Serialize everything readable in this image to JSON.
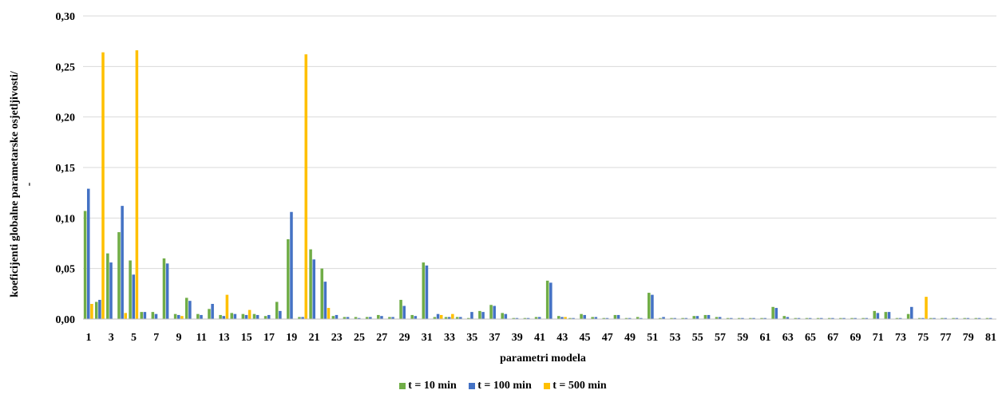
{
  "chart_data": {
    "type": "bar",
    "title": "",
    "xlabel": "parametri modela",
    "ylabel": "koeficijenti globalne parametarske osjetljivosti/ -",
    "ylabel_lines": [
      "koeficijenti globalne parametarske osjetljivosti/",
      "-"
    ],
    "ylim": [
      0,
      0.3
    ],
    "yticks": [
      "0,00",
      "0,05",
      "0,10",
      "0,15",
      "0,20",
      "0,25",
      "0,30"
    ],
    "yticks_values": [
      0,
      0.05,
      0.1,
      0.15,
      0.2,
      0.25,
      0.3
    ],
    "grid": true,
    "legend_position": "bottom",
    "categories": [
      "1",
      "2",
      "3",
      "4",
      "5",
      "6",
      "7",
      "8",
      "9",
      "10",
      "11",
      "12",
      "13",
      "14",
      "15",
      "16",
      "17",
      "18",
      "19",
      "20",
      "21",
      "22",
      "23",
      "24",
      "25",
      "26",
      "27",
      "28",
      "29",
      "30",
      "31",
      "32",
      "33",
      "34",
      "35",
      "36",
      "37",
      "38",
      "39",
      "40",
      "41",
      "42",
      "43",
      "44",
      "45",
      "46",
      "47",
      "48",
      "49",
      "50",
      "51",
      "52",
      "53",
      "54",
      "55",
      "56",
      "57",
      "58",
      "59",
      "60",
      "61",
      "62",
      "63",
      "64",
      "65",
      "66",
      "67",
      "68",
      "69",
      "70",
      "71",
      "72",
      "73",
      "74",
      "75",
      "76",
      "77",
      "78",
      "79",
      "80",
      "81"
    ],
    "xtick_labels": [
      "1",
      "3",
      "5",
      "7",
      "9",
      "11",
      "13",
      "15",
      "17",
      "19",
      "21",
      "23",
      "25",
      "27",
      "29",
      "31",
      "33",
      "35",
      "37",
      "39",
      "41",
      "43",
      "45",
      "47",
      "49",
      "51",
      "53",
      "55",
      "57",
      "59",
      "61",
      "63",
      "65",
      "67",
      "69",
      "71",
      "73",
      "75",
      "77",
      "79",
      "81"
    ],
    "series": [
      {
        "name": "t = 10 min",
        "color": "#70ad47",
        "values": [
          0.107,
          0.017,
          0.065,
          0.086,
          0.058,
          0.007,
          0.007,
          0.06,
          0.005,
          0.021,
          0.005,
          0.01,
          0.004,
          0.006,
          0.005,
          0.005,
          0.003,
          0.017,
          0.079,
          0.002,
          0.069,
          0.05,
          0.003,
          0.002,
          0.002,
          0.002,
          0.004,
          0.002,
          0.019,
          0.004,
          0.056,
          0.002,
          0.002,
          0.002,
          0.001,
          0.008,
          0.014,
          0.006,
          0.001,
          0.001,
          0.002,
          0.038,
          0.003,
          0.001,
          0.005,
          0.002,
          0.001,
          0.004,
          0.001,
          0.002,
          0.026,
          0.001,
          0.001,
          0.001,
          0.003,
          0.004,
          0.002,
          0.001,
          0.001,
          0.001,
          0.001,
          0.012,
          0.003,
          0.001,
          0.001,
          0.001,
          0.001,
          0.001,
          0.001,
          0.001,
          0.008,
          0.007,
          0.001,
          0.005,
          0.001,
          0.001,
          0.001,
          0.001,
          0.001,
          0.001,
          0.001
        ]
      },
      {
        "name": "t = 100 min",
        "color": "#4472c4",
        "values": [
          0.129,
          0.019,
          0.056,
          0.112,
          0.044,
          0.007,
          0.005,
          0.055,
          0.004,
          0.018,
          0.004,
          0.015,
          0.003,
          0.005,
          0.004,
          0.004,
          0.004,
          0.008,
          0.106,
          0.002,
          0.059,
          0.037,
          0.004,
          0.002,
          0.001,
          0.002,
          0.003,
          0.002,
          0.013,
          0.003,
          0.053,
          0.005,
          0.002,
          0.002,
          0.007,
          0.007,
          0.013,
          0.005,
          0.001,
          0.001,
          0.002,
          0.036,
          0.002,
          0.001,
          0.004,
          0.002,
          0.001,
          0.004,
          0.001,
          0.001,
          0.024,
          0.002,
          0.001,
          0.001,
          0.003,
          0.004,
          0.002,
          0.001,
          0.001,
          0.001,
          0.001,
          0.011,
          0.002,
          0.001,
          0.001,
          0.001,
          0.001,
          0.001,
          0.001,
          0.001,
          0.006,
          0.007,
          0.001,
          0.012,
          0.001,
          0.001,
          0.001,
          0.001,
          0.001,
          0.001,
          0.001
        ]
      },
      {
        "name": "t = 500 min",
        "color": "#ffc000",
        "values": [
          0.015,
          0.264,
          0.0,
          0.006,
          0.266,
          0.0,
          0.0,
          0.0,
          0.003,
          0.0,
          0.0,
          0.0,
          0.024,
          0.0,
          0.009,
          0.0,
          0.0,
          0.0,
          0.0,
          0.262,
          0.0,
          0.011,
          0.0,
          0.0,
          0.0,
          0.0,
          0.0,
          0.0,
          0.0,
          0.0,
          0.0,
          0.004,
          0.005,
          0.0,
          0.0,
          0.0,
          0.0,
          0.0,
          0.0,
          0.0,
          0.0,
          0.0,
          0.002,
          0.0,
          0.0,
          0.0,
          0.0,
          0.0,
          0.0,
          0.0,
          0.0,
          0.0,
          0.0,
          0.0,
          0.0,
          0.0,
          0.0,
          0.0,
          0.0,
          0.0,
          0.0,
          0.0,
          0.0,
          0.0,
          0.0,
          0.0,
          0.0,
          0.0,
          0.0,
          0.0,
          0.0,
          0.0,
          0.0,
          0.0,
          0.022,
          0.0,
          0.0,
          0.0,
          0.0,
          0.0,
          0.0
        ]
      }
    ]
  }
}
